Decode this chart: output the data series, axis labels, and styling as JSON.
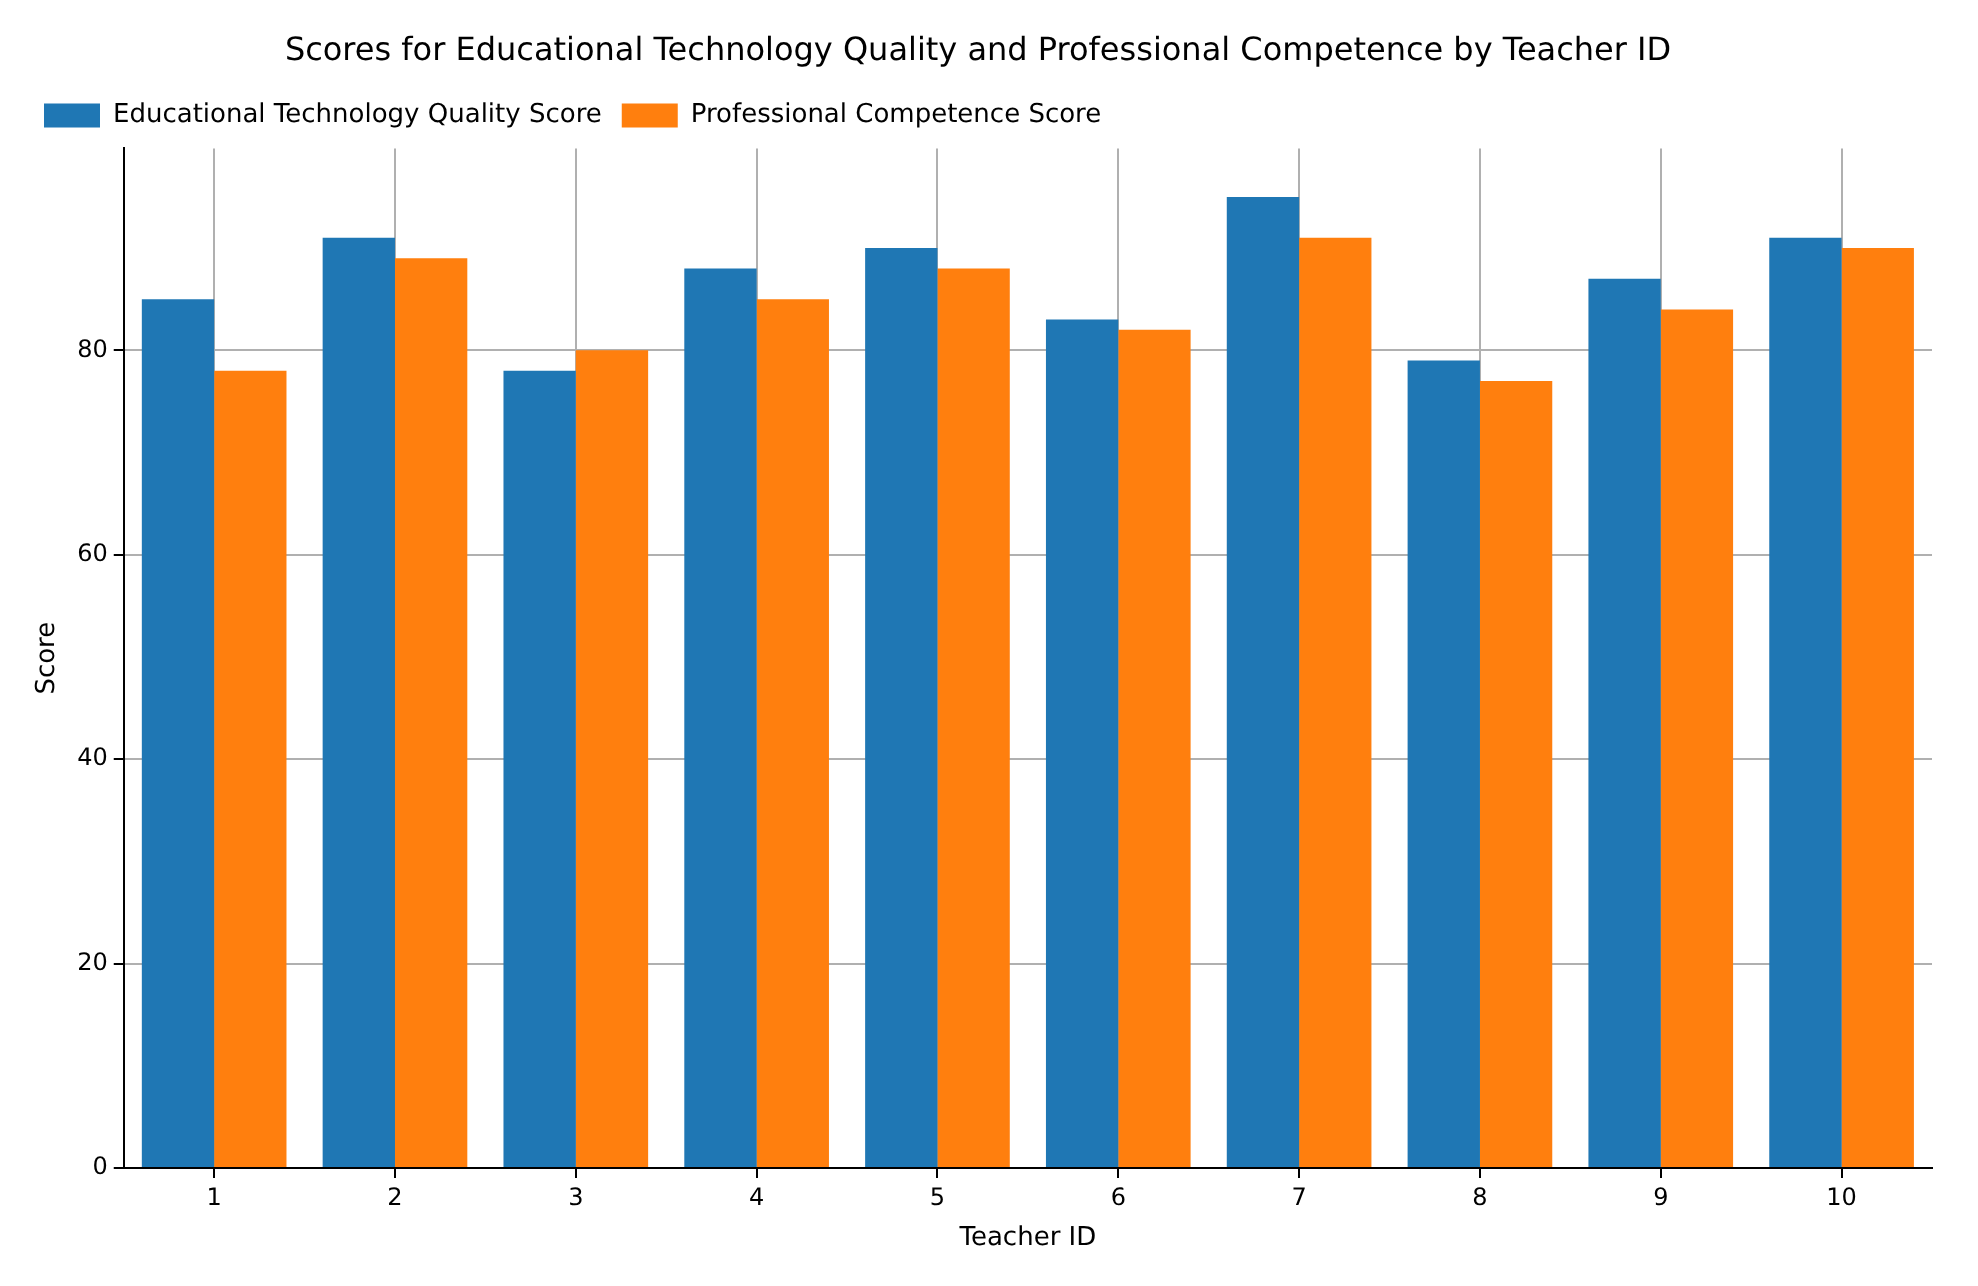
{
  "chart_data": {
    "type": "bar",
    "title": "Scores for Educational Technology Quality and Professional Competence by Teacher ID",
    "xlabel": "Teacher ID",
    "ylabel": "Score",
    "categories": [
      "1",
      "2",
      "3",
      "4",
      "5",
      "6",
      "7",
      "8",
      "9",
      "10"
    ],
    "series": [
      {
        "name": "Educational Technology Quality Score",
        "color": "#1f77b4",
        "values": [
          85,
          91,
          78,
          88,
          90,
          83,
          95,
          79,
          87,
          91
        ]
      },
      {
        "name": "Professional Competence Score",
        "color": "#ff7f0e",
        "values": [
          78,
          89,
          80,
          85,
          88,
          82,
          91,
          77,
          84,
          90
        ]
      }
    ],
    "ylim": [
      0,
      99.75
    ],
    "yticks": [
      0,
      20,
      40,
      60,
      80
    ],
    "grid": true,
    "legend": "top left"
  }
}
